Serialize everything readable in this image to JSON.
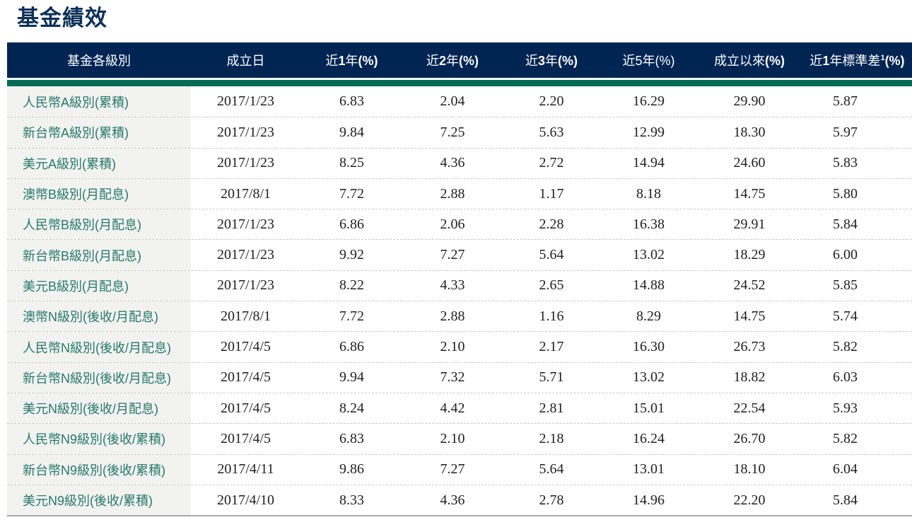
{
  "title": "基金績效",
  "colors": {
    "header_bg": "#002553",
    "accent_bar": "#006C54",
    "fund_link_green": "#27796A",
    "fund_col_bg": "#F2F2F0",
    "title_navy": "#0d3158"
  },
  "table": {
    "columns": [
      {
        "key": "name",
        "segments": [
          {
            "t": "基金各級別"
          }
        ]
      },
      {
        "key": "inception",
        "segments": [
          {
            "t": "成立日"
          }
        ]
      },
      {
        "key": "y1",
        "segments": [
          {
            "t": "近"
          },
          {
            "t": "1",
            "b": true
          },
          {
            "t": "年"
          },
          {
            "t": "(%)",
            "b": true
          }
        ]
      },
      {
        "key": "y2",
        "segments": [
          {
            "t": "近"
          },
          {
            "t": "2",
            "b": true
          },
          {
            "t": "年"
          },
          {
            "t": "(%)",
            "b": true
          }
        ]
      },
      {
        "key": "y3",
        "segments": [
          {
            "t": "近"
          },
          {
            "t": "3",
            "b": true
          },
          {
            "t": "年"
          },
          {
            "t": "(%)",
            "b": true
          }
        ]
      },
      {
        "key": "y5",
        "segments": [
          {
            "t": "近5年"
          },
          {
            "t": "(%)"
          }
        ]
      },
      {
        "key": "since",
        "segments": [
          {
            "t": "成立以來"
          },
          {
            "t": "(%)",
            "b": true
          }
        ]
      },
      {
        "key": "std",
        "segments": [
          {
            "t": "近"
          },
          {
            "t": "1",
            "b": true
          },
          {
            "t": "年標準差"
          },
          {
            "t": "1",
            "b": true,
            "sup": true
          },
          {
            "t": "(%)",
            "b": true
          }
        ]
      }
    ],
    "rows": [
      {
        "name": "人民幣A級別(累積)",
        "inception": "2017/1/23",
        "y1": "6.83",
        "y2": "2.04",
        "y3": "2.20",
        "y5": "16.29",
        "since": "29.90",
        "std": "5.87"
      },
      {
        "name": "新台幣A級別(累積)",
        "inception": "2017/1/23",
        "y1": "9.84",
        "y2": "7.25",
        "y3": "5.63",
        "y5": "12.99",
        "since": "18.30",
        "std": "5.97"
      },
      {
        "name": "美元A級別(累積)",
        "inception": "2017/1/23",
        "y1": "8.25",
        "y2": "4.36",
        "y3": "2.72",
        "y5": "14.94",
        "since": "24.60",
        "std": "5.83"
      },
      {
        "name": "澳幣B級別(月配息)",
        "inception": "2017/8/1",
        "y1": "7.72",
        "y2": "2.88",
        "y3": "1.17",
        "y5": "8.18",
        "since": "14.75",
        "std": "5.80"
      },
      {
        "name": "人民幣B級別(月配息)",
        "inception": "2017/1/23",
        "y1": "6.86",
        "y2": "2.06",
        "y3": "2.28",
        "y5": "16.38",
        "since": "29.91",
        "std": "5.84"
      },
      {
        "name": "新台幣B級別(月配息)",
        "inception": "2017/1/23",
        "y1": "9.92",
        "y2": "7.27",
        "y3": "5.64",
        "y5": "13.02",
        "since": "18.29",
        "std": "6.00"
      },
      {
        "name": "美元B級別(月配息)",
        "inception": "2017/1/23",
        "y1": "8.22",
        "y2": "4.33",
        "y3": "2.65",
        "y5": "14.88",
        "since": "24.52",
        "std": "5.85"
      },
      {
        "name": "澳幣N級別(後收/月配息)",
        "inception": "2017/8/1",
        "y1": "7.72",
        "y2": "2.88",
        "y3": "1.16",
        "y5": "8.29",
        "since": "14.75",
        "std": "5.74"
      },
      {
        "name": "人民幣N級別(後收/月配息)",
        "inception": "2017/4/5",
        "y1": "6.86",
        "y2": "2.10",
        "y3": "2.17",
        "y5": "16.30",
        "since": "26.73",
        "std": "5.82"
      },
      {
        "name": "新台幣N級別(後收/月配息)",
        "inception": "2017/4/5",
        "y1": "9.94",
        "y2": "7.32",
        "y3": "5.71",
        "y5": "13.02",
        "since": "18.82",
        "std": "6.03"
      },
      {
        "name": "美元N級別(後收/月配息)",
        "inception": "2017/4/5",
        "y1": "8.24",
        "y2": "4.42",
        "y3": "2.81",
        "y5": "15.01",
        "since": "22.54",
        "std": "5.93"
      },
      {
        "name": "人民幣N9級別(後收/累積)",
        "inception": "2017/4/5",
        "y1": "6.83",
        "y2": "2.10",
        "y3": "2.18",
        "y5": "16.24",
        "since": "26.70",
        "std": "5.82"
      },
      {
        "name": "新台幣N9級別(後收/累積)",
        "inception": "2017/4/11",
        "y1": "9.86",
        "y2": "7.27",
        "y3": "5.64",
        "y5": "13.01",
        "since": "18.10",
        "std": "6.04"
      },
      {
        "name": "美元N9級別(後收/累積)",
        "inception": "2017/4/10",
        "y1": "8.33",
        "y2": "4.36",
        "y3": "2.78",
        "y5": "14.96",
        "since": "22.20",
        "std": "5.84"
      }
    ]
  }
}
